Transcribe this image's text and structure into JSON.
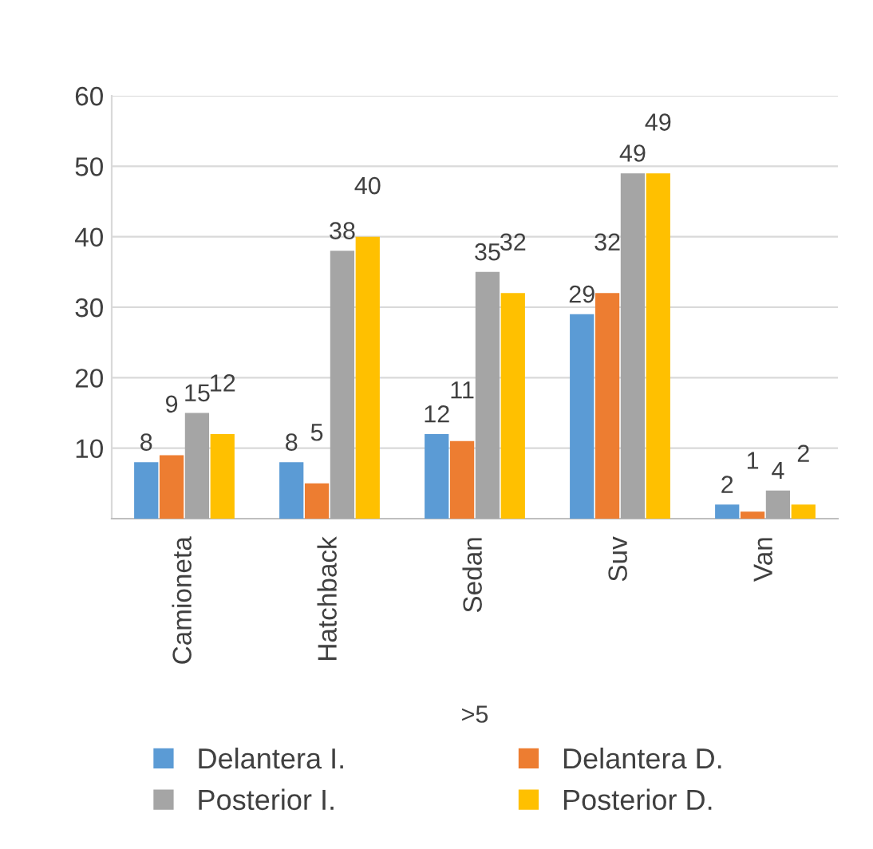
{
  "chart_data": {
    "type": "bar",
    "xlabel": ">5",
    "categories": [
      "Camioneta",
      "Hatchback",
      "Sedan",
      "Suv",
      "Van"
    ],
    "series": [
      {
        "name": "Delantera I.",
        "color": "#5b9bd5",
        "values": [
          8,
          8,
          12,
          29,
          2
        ]
      },
      {
        "name": "Delantera D.",
        "color": "#ed7d31",
        "values": [
          9,
          5,
          11,
          32,
          1
        ]
      },
      {
        "name": "Posterior I.",
        "color": "#a5a5a5",
        "values": [
          15,
          38,
          35,
          49,
          4
        ]
      },
      {
        "name": "Posterior D.",
        "color": "#ffc000",
        "values": [
          12,
          40,
          32,
          49,
          2
        ]
      }
    ],
    "ylim": [
      0,
      60
    ],
    "yticks": [
      {
        "value": 0,
        "label": null
      },
      10,
      20,
      30,
      40,
      50,
      60
    ],
    "grid": "y",
    "legend": "bottom",
    "data_labels": true
  }
}
